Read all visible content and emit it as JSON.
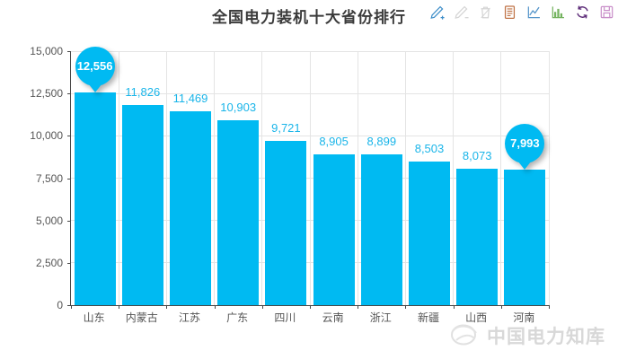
{
  "title": "全国电力装机十大省份排行",
  "toolbar": {
    "icons": [
      {
        "name": "pencil-plus-icon",
        "color": "#3e8ec9",
        "disabled": false
      },
      {
        "name": "pencil-minus-icon",
        "color": "#d4d4d4",
        "disabled": true
      },
      {
        "name": "trash-icon",
        "color": "#d4d4d4",
        "disabled": true
      },
      {
        "name": "data-view-icon",
        "color": "#bf7245",
        "disabled": false
      },
      {
        "name": "line-chart-icon",
        "color": "#5796ca",
        "disabled": false
      },
      {
        "name": "bar-chart-icon",
        "color": "#74b35f",
        "disabled": false
      },
      {
        "name": "refresh-icon",
        "color": "#5e2d79",
        "disabled": false
      },
      {
        "name": "save-image-icon",
        "color": "#c98fc9",
        "disabled": false
      }
    ]
  },
  "chart_data": {
    "type": "bar",
    "title": "全国电力装机十大省份排行",
    "categories": [
      "山东",
      "内蒙古",
      "江苏",
      "广东",
      "四川",
      "云南",
      "浙江",
      "新疆",
      "山西",
      "河南"
    ],
    "values": [
      12556,
      11826,
      11469,
      10903,
      9721,
      8905,
      8899,
      8503,
      8073,
      7993
    ],
    "value_labels": [
      "12,556",
      "11,826",
      "11,469",
      "10,903",
      "9,721",
      "8,905",
      "8,899",
      "8,503",
      "8,073",
      "7,993"
    ],
    "pinned": [
      true,
      false,
      false,
      false,
      false,
      false,
      false,
      false,
      false,
      true
    ],
    "xlabel": "",
    "ylabel": "",
    "ylim": [
      0,
      15000
    ],
    "yticks": [
      0,
      2500,
      5000,
      7500,
      10000,
      12500,
      15000
    ],
    "ytick_labels": [
      "0",
      "2,500",
      "5,000",
      "7,500",
      "10,000",
      "12,500",
      "15,000"
    ],
    "grid": true,
    "legend": "none",
    "bar_color": "#00baf2",
    "label_color": "#1ab5e9"
  },
  "watermark": {
    "text": "中国电力知库",
    "logo": "emblem-logo"
  }
}
